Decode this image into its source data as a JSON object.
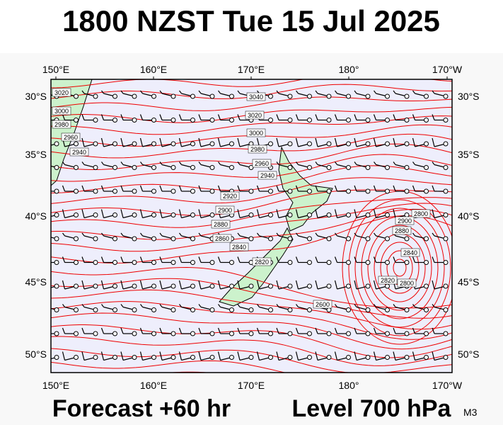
{
  "header": {
    "title": "1800 NZST Tue 15 Jul 2025"
  },
  "map": {
    "lon_labels": [
      "150°E",
      "160°E",
      "170°E",
      "180°",
      "170°W"
    ],
    "lat_labels": [
      "30°S",
      "35°S",
      "40°S",
      "45°S",
      "50°S"
    ],
    "contour_labels": [
      "3020",
      "3000",
      "2980",
      "2960",
      "2940",
      "3040",
      "3020",
      "3000",
      "2980",
      "2960",
      "2940",
      "2920",
      "2900",
      "2880",
      "2860",
      "2840",
      "2820",
      "2800",
      "2900",
      "2880",
      "2840",
      "2820",
      "2800",
      "2600"
    ]
  },
  "footer": {
    "forecast": "Forecast +60 hr",
    "level": "Level 700 hPa",
    "code": "M3"
  }
}
